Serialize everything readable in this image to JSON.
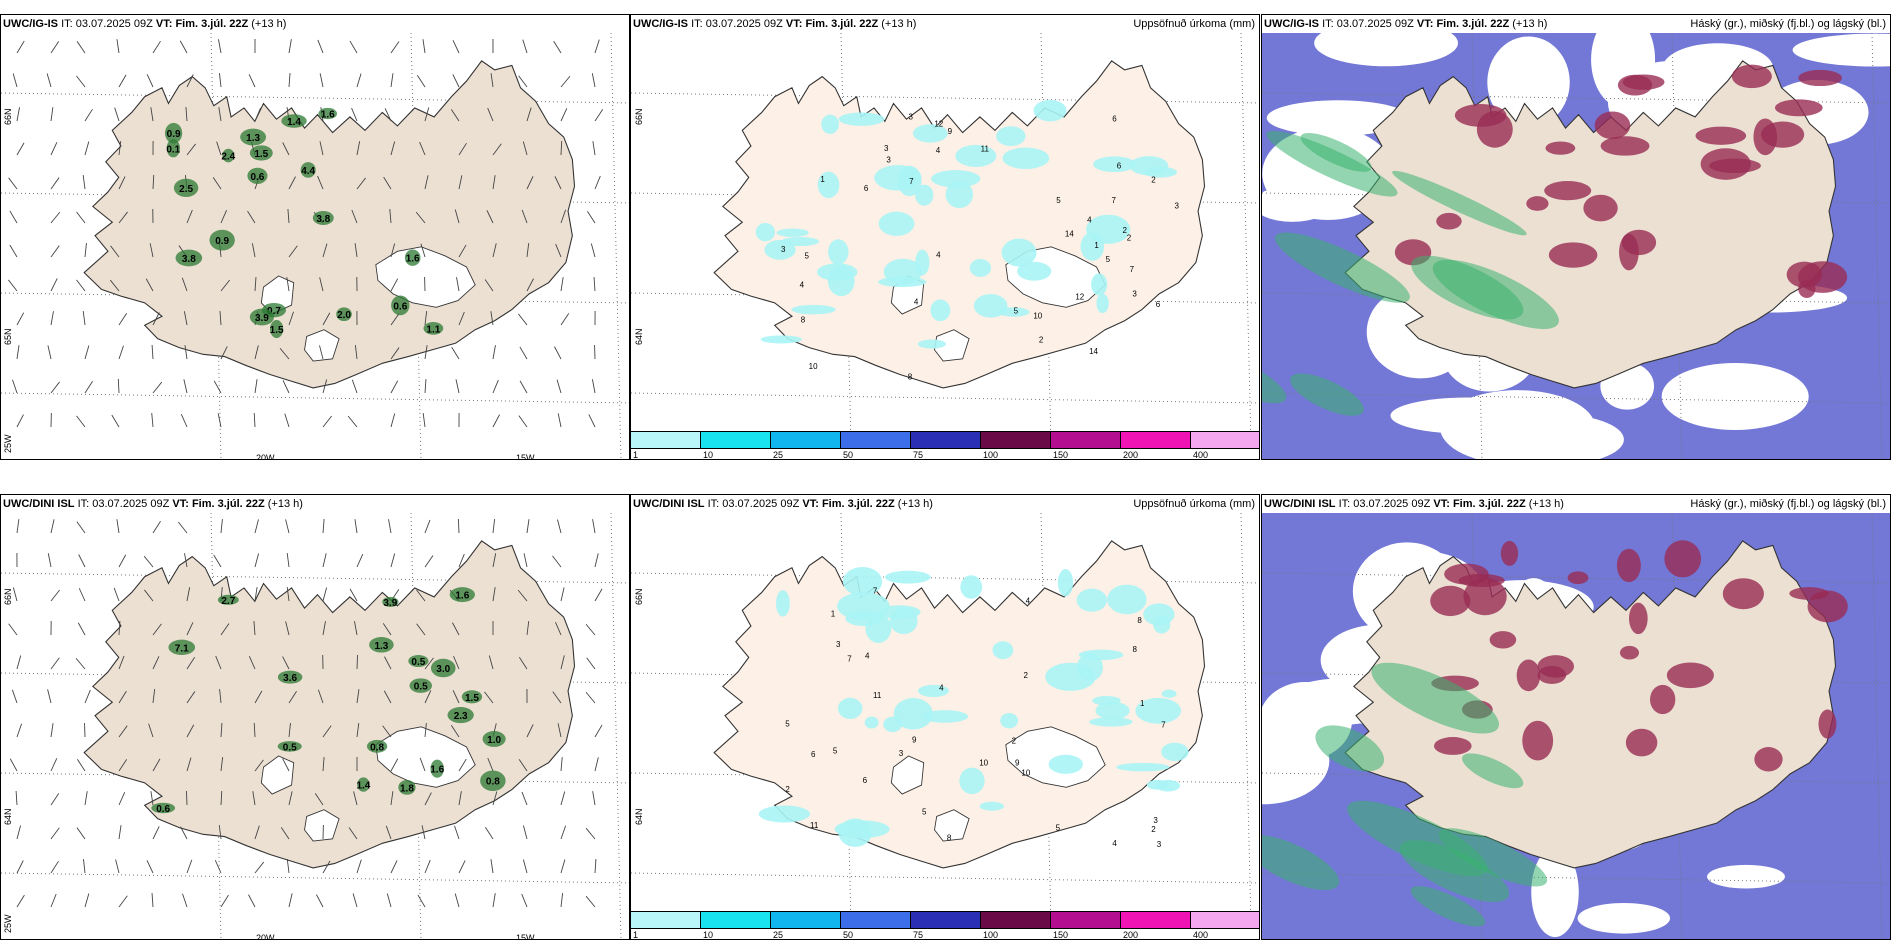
{
  "panels": [
    {
      "model": "UWC/IG-IS",
      "it_label": "IT:",
      "it": "03.07.2025 09Z",
      "vt_label": "VT:",
      "vt": "Fim. 3.júl. 22Z",
      "lead": "(+13 h)",
      "right": "",
      "type": "wind",
      "lat_labels": [
        "66N",
        "65N"
      ],
      "lon_labels": [
        "20W",
        "15W"
      ],
      "corner_label": "25W",
      "values": [
        "1.5",
        "1.1",
        "1.5",
        "0.9",
        "0.7",
        "0.1",
        "2.0",
        "1.3",
        "1.6",
        "3.8",
        "0.6",
        "2.5",
        "3.8",
        "0.9",
        "0.6",
        "1.4",
        "2.4",
        "3.9",
        "1.6",
        "4.4"
      ]
    },
    {
      "model": "UWC/IG-IS",
      "it_label": "IT:",
      "it": "03.07.2025 09Z",
      "vt_label": "VT:",
      "vt": "Fim. 3.júl. 22Z",
      "lead": "(+13 h)",
      "right": "Uppsöfnuð úrkoma (mm)",
      "type": "precip",
      "lat_labels": [
        "66N",
        "64N"
      ],
      "values": [
        "2",
        "3",
        "7",
        "6",
        "5",
        "4",
        "3",
        "2",
        "1",
        "8",
        "10",
        "12",
        "14",
        "6",
        "5",
        "4",
        "3",
        "2",
        "4",
        "7",
        "6",
        "5",
        "3",
        "12",
        "14",
        "10",
        "9",
        "8",
        "11",
        "7",
        "4",
        "6",
        "5",
        "3",
        "2",
        "1",
        "3",
        "4"
      ]
    },
    {
      "model": "UWC/IG-IS",
      "it_label": "IT:",
      "it": "03.07.2025 09Z",
      "vt_label": "VT:",
      "vt": "Fim. 3.júl. 22Z",
      "lead": "(+13 h)",
      "right": "Háský (gr.), miðský (fj.bl.) og lágský (bl.)",
      "type": "cloud"
    },
    {
      "model": "UWC/DINI ISL",
      "it_label": "IT:",
      "it": "03.07.2025 09Z",
      "vt_label": "VT:",
      "vt": "Fim. 3.júl. 22Z",
      "lead": "(+13 h)",
      "right": "",
      "type": "wind",
      "lat_labels": [
        "66N",
        "64N"
      ],
      "lon_labels": [
        "20W",
        "15W"
      ],
      "corner_label": "25W",
      "values": [
        "2.3",
        "0.8",
        "3.0",
        "0.5",
        "3.6",
        "0.6",
        "7.1",
        "2.7",
        "1.6",
        "1.4",
        "0.5",
        "1.5",
        "1.3",
        "1.8",
        "1.0",
        "1.6",
        "0.5",
        "3.9",
        "0.8"
      ]
    },
    {
      "model": "UWC/DINI ISL",
      "it_label": "IT:",
      "it": "03.07.2025 09Z",
      "vt_label": "VT:",
      "vt": "Fim. 3.júl. 22Z",
      "lead": "(+13 h)",
      "right": "Uppsöfnuð úrkoma (mm)",
      "type": "precip",
      "lat_labels": [
        "66N",
        "64N"
      ],
      "values": [
        "2",
        "5",
        "3",
        "4",
        "11",
        "8",
        "10",
        "9",
        "6",
        "7",
        "5",
        "3",
        "2",
        "1",
        "4",
        "8",
        "10",
        "7",
        "5",
        "3",
        "2",
        "6",
        "4",
        "11",
        "5",
        "9",
        "7",
        "3",
        "2",
        "1",
        "4",
        "8"
      ]
    },
    {
      "model": "UWC/DINI ISL",
      "it_label": "IT:",
      "it": "03.07.2025 09Z",
      "vt_label": "VT:",
      "vt": "Fim. 3.júl. 22Z",
      "lead": "(+13 h)",
      "right": "Háský (gr.), miðský (fj.bl.) og lágský (bl.)",
      "type": "cloud"
    }
  ],
  "legend": {
    "labels": [
      "1",
      "10",
      "25",
      "50",
      "75",
      "100",
      "150",
      "200",
      "400"
    ],
    "colors": [
      "#b9f6f9",
      "#19e3ef",
      "#12b6ee",
      "#3b6ee8",
      "#2a2fb6",
      "#6a0b47",
      "#b30e8f",
      "#f014b4",
      "#f4a7ee"
    ]
  },
  "colors": {
    "land": "#ece0d3",
    "land_precip": "#fdf0e6",
    "precip_light": "#aaf4f5",
    "wind_green": "#2b7a33",
    "cloud_low": "#5b5fcf",
    "cloud_mid": "#982c54",
    "cloud_high": "#3ab270"
  }
}
